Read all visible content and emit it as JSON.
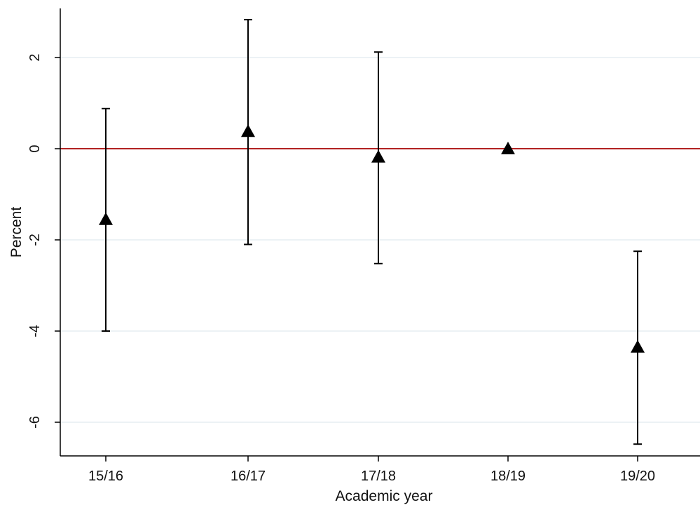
{
  "chart_data": {
    "type": "scatter",
    "title": "",
    "xlabel": "Academic year",
    "ylabel": "Percent",
    "categories": [
      "15/16",
      "16/17",
      "17/18",
      "18/19",
      "19/20"
    ],
    "series": [
      {
        "points": [
          {
            "x": "15/16",
            "y": -1.55,
            "ci_low": -4.0,
            "ci_high": 0.88
          },
          {
            "x": "16/17",
            "y": 0.38,
            "ci_low": -2.1,
            "ci_high": 2.83
          },
          {
            "x": "17/18",
            "y": -0.18,
            "ci_low": -2.52,
            "ci_high": 2.12
          },
          {
            "x": "18/19",
            "y": 0.0,
            "ci_low": null,
            "ci_high": null
          },
          {
            "x": "19/20",
            "y": -4.35,
            "ci_low": -6.48,
            "ci_high": -2.25
          }
        ],
        "marker": "triangle",
        "color": "#000000"
      }
    ],
    "reference_line": {
      "y": 0,
      "color": "#b22222"
    },
    "y_ticks": [
      2,
      0,
      -2,
      -4,
      -6
    ],
    "ylim": [
      -6.7,
      3.1
    ],
    "grid": true,
    "grid_color": "#e6eef2",
    "legend": "none"
  }
}
